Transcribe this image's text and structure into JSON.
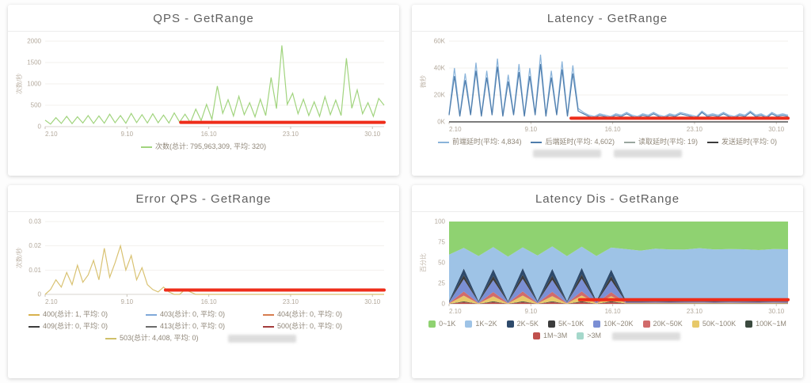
{
  "colors": {
    "annotation_red": "#ee2d1a",
    "axis_text": "#b3a99c",
    "grid": "#f3f1ee",
    "axis_line": "#d8d4cf"
  },
  "chart_data": [
    {
      "id": "qps",
      "type": "line",
      "title": "QPS - GetRange",
      "ylabel": "次数/秒",
      "ylim": [
        0,
        2000
      ],
      "yticks": [
        "0",
        "500",
        "1000",
        "1500",
        "2000"
      ],
      "xticks": [
        "2.10",
        "9.10",
        "16.10",
        "23.10",
        "30.10"
      ],
      "series": [
        {
          "name": "次数",
          "color": "#a1d47e",
          "values": [
            150,
            60,
            210,
            75,
            240,
            70,
            230,
            85,
            260,
            75,
            250,
            80,
            290,
            90,
            260,
            80,
            310,
            95,
            280,
            85,
            300,
            90,
            270,
            85,
            320,
            105,
            290,
            95,
            410,
            140,
            520,
            170,
            950,
            310,
            630,
            250,
            710,
            280,
            560,
            230,
            640,
            260,
            1150,
            420,
            1900,
            520,
            780,
            300,
            640,
            260,
            580,
            240,
            700,
            280,
            620,
            260,
            1600,
            430,
            860,
            300,
            560,
            240,
            660,
            500
          ]
        }
      ],
      "legend": [
        {
          "label": "次数(总计: 795,963,309, 平均: 320)",
          "color": "#a1d47e",
          "swatch": "line"
        }
      ],
      "red_line": {
        "start_frac": 0.4,
        "end_frac": 1.0,
        "y_frac": 0.05
      }
    },
    {
      "id": "latency",
      "type": "line",
      "title": "Latency - GetRange",
      "ylabel": "微秒",
      "ylim": [
        0,
        60
      ],
      "yticks": [
        "0K",
        "20K",
        "40K",
        "60K"
      ],
      "xticks": [
        "2.10",
        "9.10",
        "16.10",
        "23.10",
        "30.10"
      ],
      "series": [
        {
          "name": "前端延时",
          "color": "#89b3da",
          "values": [
            6,
            40,
            5,
            36,
            6,
            44,
            5,
            38,
            6,
            47,
            5,
            35,
            6,
            43,
            5,
            40,
            6,
            50,
            5,
            38,
            6,
            45,
            5,
            42,
            10,
            7,
            5,
            4,
            6,
            5,
            4,
            6,
            5,
            7,
            5,
            4,
            6,
            5,
            7,
            5,
            4,
            6,
            5,
            7,
            6,
            5,
            4,
            8,
            5,
            6,
            5,
            7,
            5,
            4,
            6,
            5,
            8,
            5,
            6,
            4,
            7,
            5,
            6,
            5
          ]
        },
        {
          "name": "后端延时",
          "color": "#4e7cab",
          "values": [
            5,
            34,
            4,
            31,
            5,
            38,
            4,
            33,
            5,
            41,
            4,
            30,
            5,
            37,
            4,
            34,
            5,
            43,
            4,
            33,
            5,
            39,
            4,
            36,
            8,
            6,
            4,
            3,
            5,
            4,
            3,
            5,
            4,
            6,
            4,
            3,
            5,
            4,
            6,
            4,
            3,
            5,
            4,
            6,
            5,
            4,
            3,
            7,
            4,
            5,
            4,
            6,
            4,
            3,
            5,
            4,
            7,
            4,
            5,
            3,
            6,
            4,
            5,
            4
          ]
        },
        {
          "name": "读取延时",
          "color": "#9aa69f",
          "const": 0.02
        },
        {
          "name": "发送延时",
          "color": "#3c3c3c",
          "const": 0
        }
      ],
      "legend": [
        {
          "label": "前端延时(平均: 4,834)",
          "color": "#89b3da",
          "swatch": "line"
        },
        {
          "label": "后端延时(平均: 4,602)",
          "color": "#4e7cab",
          "swatch": "line"
        },
        {
          "label": "读取延时(平均: 19)",
          "color": "#9aa69f",
          "swatch": "line"
        },
        {
          "label": "发送延时(平均: 0)",
          "color": "#3c3c3c",
          "swatch": "line"
        },
        {
          "redacted": true
        },
        {
          "redacted": true
        }
      ],
      "red_line": {
        "start_frac": 0.36,
        "end_frac": 1.0,
        "y_frac": 0.045
      }
    },
    {
      "id": "error-qps",
      "type": "line",
      "title": "Error QPS - GetRange",
      "ylabel": "次数/秒",
      "ylim": [
        0,
        0.03
      ],
      "yticks": [
        "0",
        "0.01",
        "0.02",
        "0.03"
      ],
      "xticks": [
        "2.10",
        "9.10",
        "16.10",
        "23.10",
        "30.10"
      ],
      "series": [
        {
          "name": "503",
          "color": "#d9c272",
          "values": [
            0,
            0.002,
            0.006,
            0.003,
            0.009,
            0.004,
            0.012,
            0.005,
            0.008,
            0.014,
            0.006,
            0.019,
            0.007,
            0.013,
            0.02,
            0.01,
            0.016,
            0.006,
            0.011,
            0.004,
            0.002,
            0.001,
            0.003,
            0.001,
            0,
            0,
            0.002,
            0.001,
            0,
            0,
            0,
            0,
            0,
            0,
            0,
            0,
            0,
            0,
            0,
            0,
            0,
            0,
            0,
            0,
            0,
            0,
            0,
            0,
            0,
            0,
            0,
            0,
            0,
            0,
            0,
            0,
            0,
            0,
            0,
            0,
            0,
            0,
            0,
            0
          ]
        }
      ],
      "legend": [
        {
          "label": "400(总计: 1, 平均: 0)",
          "color": "#d8b14e",
          "swatch": "line"
        },
        {
          "label": "403(总计: 0, 平均: 0)",
          "color": "#7fa8d9",
          "swatch": "line"
        },
        {
          "label": "404(总计: 0, 平均: 0)",
          "color": "#d77d4f",
          "swatch": "line"
        },
        {
          "label": "409(总计: 0, 平均: 0)",
          "color": "#3c3c3c",
          "swatch": "line"
        },
        {
          "label": "413(总计: 0, 平均: 0)",
          "color": "#6b6b6b",
          "swatch": "line"
        },
        {
          "label": "500(总计: 0, 平均: 0)",
          "color": "#a33c3c",
          "swatch": "line"
        },
        {
          "label": "503(总计: 4,408, 平均: 0)",
          "color": "#cfc06a",
          "swatch": "line"
        },
        {
          "redacted": true
        }
      ],
      "red_line": {
        "start_frac": 0.355,
        "end_frac": 1.0,
        "y_frac": 0.06
      }
    },
    {
      "id": "latency-dis",
      "type": "stacked_area",
      "title": "Latency Dis - GetRange",
      "ylabel": "百分比",
      "ylim": [
        0,
        100
      ],
      "yticks": [
        "0",
        "25",
        "50",
        "75",
        "100"
      ],
      "xticks": [
        "2.10",
        "9.10",
        "16.10",
        "23.10",
        "30.10"
      ],
      "series": [
        {
          "name": ">3M",
          "color": "#a5d8cb",
          "const": 0
        },
        {
          "name": "1M~3M",
          "color": "#c0504d",
          "values": [
            0,
            2,
            0,
            2,
            0,
            2,
            0,
            2,
            0,
            2,
            0,
            2,
            0.3,
            0.3,
            0.3,
            0.3,
            0.3,
            0.3,
            0.3,
            0.3,
            0.3,
            0.3,
            0.3,
            0.3
          ]
        },
        {
          "name": "100K~1M",
          "color": "#3b4a3f",
          "values": [
            0,
            1,
            0,
            1,
            0,
            1,
            0,
            1,
            0,
            1,
            0,
            1,
            0.2,
            0.2,
            0.2,
            0.2,
            0.2,
            0.2,
            0.2,
            0.2,
            0.2,
            0.2,
            0.2,
            0.2
          ]
        },
        {
          "name": "50K~100K",
          "color": "#e7c96a",
          "values": [
            0.5,
            7,
            0.5,
            6,
            0.5,
            7,
            0.5,
            6,
            0.5,
            7,
            0.5,
            6,
            0.5,
            0.5,
            0.5,
            0.5,
            0.5,
            0.5,
            0.5,
            0.5,
            0.5,
            0.5,
            0.5,
            0.5
          ]
        },
        {
          "name": "20K~50K",
          "color": "#d16b6b",
          "values": [
            0.5,
            5,
            0.5,
            5,
            0.5,
            5,
            0.5,
            5,
            0.5,
            5,
            0.5,
            5,
            0.5,
            0.5,
            0.5,
            0.5,
            0.5,
            0.5,
            0.5,
            0.5,
            0.5,
            0.5,
            0.5,
            0.5
          ]
        },
        {
          "name": "10K~20K",
          "color": "#7b8fd4",
          "values": [
            1,
            15,
            1,
            14,
            1,
            15,
            1,
            14,
            1,
            15,
            1,
            14,
            1,
            1,
            1,
            1,
            1,
            1,
            1,
            1,
            1,
            1,
            1,
            1
          ]
        },
        {
          "name": "5K~10K",
          "color": "#3c3c3c",
          "values": [
            0.5,
            5,
            0.5,
            5,
            0.5,
            5,
            0.5,
            5,
            0.5,
            5,
            0.5,
            5,
            0.5,
            0.5,
            0.5,
            0.5,
            0.5,
            0.5,
            0.5,
            0.5,
            0.5,
            0.5,
            0.5,
            0.5
          ]
        },
        {
          "name": "2K~5K",
          "color": "#2e4a6b",
          "values": [
            1,
            8,
            1,
            8,
            1,
            8,
            1,
            8,
            1,
            8,
            1,
            8,
            1,
            1,
            1,
            1,
            1,
            1,
            1,
            1,
            1,
            1,
            1,
            1
          ]
        },
        {
          "name": "1K~2K",
          "color": "#9ec3e6",
          "values": [
            56,
            25,
            55,
            26,
            56,
            25,
            55,
            26,
            56,
            25,
            55,
            26,
            64,
            62,
            63,
            64,
            62,
            63,
            64,
            62,
            63,
            64,
            62,
            63
          ]
        },
        {
          "name": "0~1K",
          "color": "#8fd271",
          "values": [
            40,
            32,
            42,
            30,
            44,
            31,
            41,
            29,
            43,
            30,
            42,
            31,
            34,
            36,
            33,
            35,
            34,
            32,
            35,
            33,
            34,
            36,
            33,
            34
          ]
        }
      ],
      "legend": [
        {
          "label": "0~1K",
          "color": "#8fd271",
          "swatch": "square"
        },
        {
          "label": "1K~2K",
          "color": "#9ec3e6",
          "swatch": "square"
        },
        {
          "label": "2K~5K",
          "color": "#2e4a6b",
          "swatch": "square"
        },
        {
          "label": "5K~10K",
          "color": "#3c3c3c",
          "swatch": "square"
        },
        {
          "label": "10K~20K",
          "color": "#7b8fd4",
          "swatch": "square"
        },
        {
          "label": "20K~50K",
          "color": "#d16b6b",
          "swatch": "square"
        },
        {
          "label": "50K~100K",
          "color": "#e7c96a",
          "swatch": "square"
        },
        {
          "label": "100K~1M",
          "color": "#3b4a3f",
          "swatch": "square"
        },
        {
          "label": "1M~3M",
          "color": "#c0504d",
          "swatch": "square"
        },
        {
          "label": ">3M",
          "color": "#a5d8cb",
          "swatch": "square"
        },
        {
          "redacted": true
        }
      ],
      "red_line": {
        "start_frac": 0.385,
        "end_frac": 1.0,
        "y_frac": 0.05
      }
    }
  ]
}
